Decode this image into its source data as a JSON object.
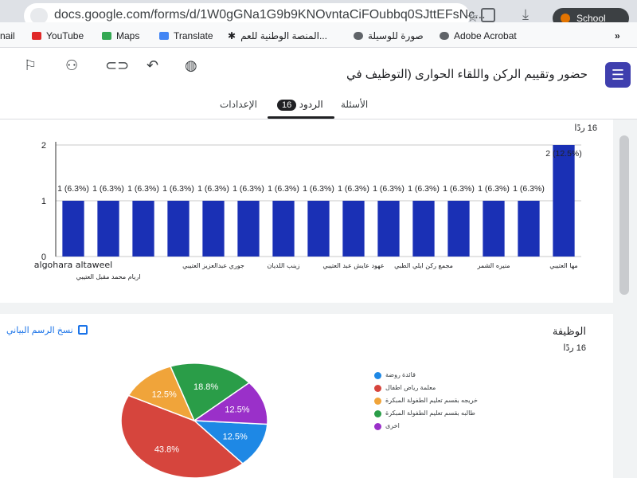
{
  "browser": {
    "url": "docs.google.com/forms/d/1W0gGNa1G9b9KNOvntaCiFOubbq0SJttEFsNc...",
    "profile_label": "School",
    "bookmarks": [
      "nail",
      "YouTube",
      "Maps",
      "Translate",
      "المنصة الوطنية للعم...",
      "صورة للوسيلة",
      "Adobe Acrobat"
    ]
  },
  "form": {
    "title": "حضور وتقييم الركن واللقاء الحوارى (التوظيف في",
    "tabs": {
      "questions": "الأسئلة",
      "responses": "الردود",
      "responses_count": "16",
      "settings": "الإعدادات"
    }
  },
  "card1": {
    "responses_count": "16 ردًا"
  },
  "card2": {
    "title": "الوظيفة",
    "responses_count": "16 ردًا",
    "copy_chart_label": "نسخ الرسم البياني"
  },
  "colors": {
    "bar": "#1a30b5",
    "pie": [
      "#1e88e5",
      "#d6453d",
      "#f0a43a",
      "#2a9d48",
      "#9a30c9"
    ]
  },
  "chart_data": [
    {
      "type": "bar",
      "ylim": [
        0,
        2
      ],
      "yticks": [
        "0",
        "1",
        "2"
      ],
      "categories": [
        "algohara altaweel",
        "اريام محمد مقبل العتيبي",
        "",
        "",
        "جوري عبدالعزيز العتيبي",
        "",
        "زينب اللديان",
        "",
        "عهود عايش عبد العتيبي",
        "",
        "مجمع ركن ايلي الطبي",
        "",
        "منيره الشمر",
        "",
        "مها العتيبي"
      ],
      "values": [
        1,
        1,
        1,
        1,
        1,
        1,
        1,
        1,
        1,
        1,
        1,
        1,
        1,
        1,
        2
      ],
      "data_labels": [
        "1 (6.3%)",
        "1 (6.3%)",
        "1 (6.3%)",
        "1 (6.3%)",
        "1 (6.3%)",
        "1 (6.3%)",
        "1 (6.3%)",
        "1 (6.3%)",
        "1 (6.3%)",
        "1 (6.3%)",
        "1 (6.3%)",
        "1 (6.3%)",
        "1 (6.3%)",
        "1 (6.3%)",
        "2 (12.5%)"
      ]
    },
    {
      "type": "pie",
      "slices": [
        {
          "label": "قائدة روضة",
          "value": 12.5,
          "text": "12.5%"
        },
        {
          "label": "معلمة رياض اطفال",
          "value": 43.8,
          "text": "43.8%"
        },
        {
          "label": "خريجه بقسم تعليم الطفولة المبكرة",
          "value": 12.5,
          "text": "12.5%"
        },
        {
          "label": "طالبه بقسم تعليم الطفولة المبكرة",
          "value": 18.8,
          "text": "18.8%"
        },
        {
          "label": "اخرى",
          "value": 12.5,
          "text": "12.5%"
        }
      ]
    }
  ]
}
